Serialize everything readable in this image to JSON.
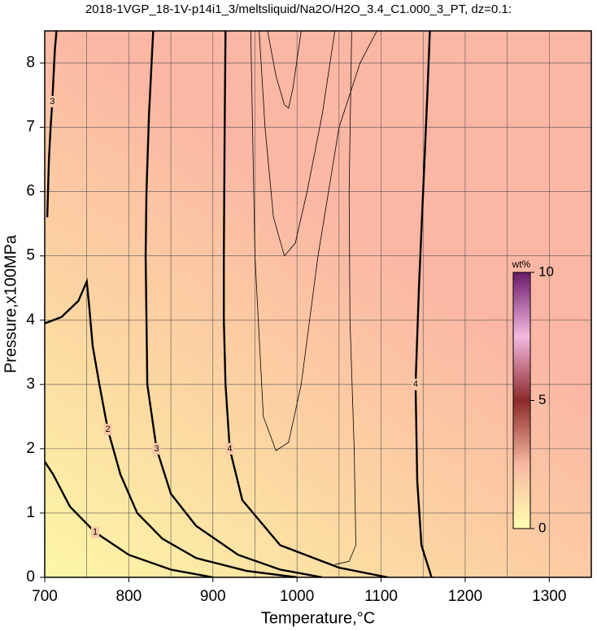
{
  "chart_data": {
    "type": "contour",
    "title": "2018-1VGP_18-1V-p14i1_3/meltsliquid/Na2O/H2O_3.4_C1.000_3_PT, dz=0.1:",
    "xlabel": "Temperature,°C",
    "ylabel": "Pressure,x100MPa",
    "xlim": [
      700,
      1350
    ],
    "ylim": [
      0,
      8.5
    ],
    "xticks": [
      700,
      800,
      900,
      1000,
      1100,
      1200,
      1300
    ],
    "yticks": [
      0,
      1,
      2,
      3,
      4,
      5,
      6,
      7,
      8
    ],
    "xgrid": [
      750,
      850,
      950,
      1050,
      1150,
      1250
    ],
    "grid": true,
    "contours": [
      {
        "level": 1,
        "bold": true,
        "x": [
          700,
          710,
          730,
          760,
          800,
          850,
          900
        ],
        "y": [
          1.8,
          1.6,
          1.1,
          0.7,
          0.35,
          0.12,
          0
        ]
      },
      {
        "level": 2,
        "bold": true,
        "x": [
          700,
          720,
          740,
          750,
          753,
          757,
          765,
          775,
          790,
          810,
          840,
          880,
          940,
          1000
        ],
        "y": [
          3.95,
          4.05,
          4.3,
          4.6,
          4.2,
          3.6,
          3.0,
          2.3,
          1.6,
          1.0,
          0.6,
          0.3,
          0.1,
          0
        ]
      },
      {
        "level": 3,
        "bold": true,
        "x": [
          829,
          824,
          821,
          820,
          822,
          833,
          850,
          880,
          930,
          980,
          1030
        ],
        "y": [
          8.5,
          7.2,
          6,
          5,
          3,
          2,
          1.3,
          0.8,
          0.35,
          0.12,
          0
        ]
      },
      {
        "level": 3,
        "bold": true,
        "x": [
          703,
          705,
          707,
          709,
          712,
          714
        ],
        "y": [
          5.6,
          6.5,
          7.0,
          7.4,
          8.2,
          8.5
        ]
      },
      {
        "level": 4,
        "bold": true,
        "x": [
          915,
          914,
          913,
          913,
          915,
          920,
          935,
          980,
          1050,
          1108
        ],
        "y": [
          8.5,
          7,
          5,
          4,
          3,
          2,
          1.2,
          0.5,
          0.15,
          0
        ]
      },
      {
        "level": 4,
        "bold": true,
        "x": [
          1158,
          1155,
          1150,
          1145,
          1141,
          1143,
          1148,
          1160
        ],
        "y": [
          8.5,
          7.5,
          6,
          4.5,
          3,
          1.5,
          0.5,
          0
        ]
      },
      {
        "level": 3.9,
        "bold": false,
        "x": [
          965,
          975,
          985,
          990,
          995,
          1005
        ],
        "y": [
          8.5,
          7.8,
          7.35,
          7.3,
          7.6,
          8.5
        ]
      },
      {
        "level": 3.95,
        "bold": false,
        "x": [
          955,
          962,
          972,
          985,
          998,
          1012,
          1030,
          1045
        ],
        "y": [
          8.5,
          7,
          5.6,
          5.0,
          5.2,
          6,
          7.2,
          8.5
        ]
      },
      {
        "level": 4.0,
        "bold": false,
        "x": [
          945,
          950,
          960,
          975,
          990,
          1005,
          1025,
          1050,
          1075,
          1095
        ],
        "y": [
          8.5,
          5,
          2.5,
          1.97,
          2.1,
          3,
          5,
          7,
          8,
          8.5
        ]
      },
      {
        "level": 3.8,
        "bold": false,
        "x": [
          1065,
          1062,
          1063,
          1068,
          1070,
          1062,
          1045
        ],
        "y": [
          8.5,
          6,
          4,
          2,
          0.5,
          0.25,
          0.2
        ]
      }
    ],
    "colorbar": {
      "label": "wt%",
      "lim": [
        0,
        10
      ],
      "ticks": [
        0,
        5,
        10
      ]
    }
  }
}
